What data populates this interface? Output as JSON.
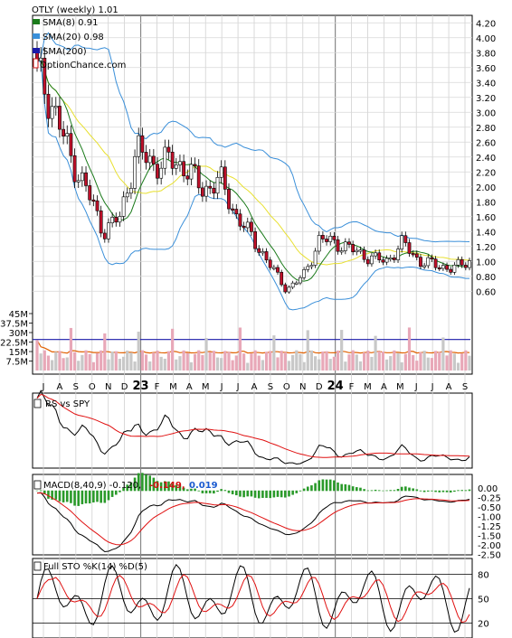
{
  "chart_data": [
    {
      "type": "line",
      "panel": "price",
      "title": "OTLY (weekly) 1.01",
      "y_ticks": [
        0.6,
        0.8,
        1.0,
        1.2,
        1.4,
        1.6,
        1.8,
        2.0,
        2.2,
        2.4,
        2.6,
        2.8,
        3.0,
        3.2,
        3.4,
        3.6,
        3.8,
        4.0,
        4.2
      ],
      "y_tick_labels": [
        "0.60",
        "0.80",
        "1.00",
        "1.20",
        "1.40",
        "1.60",
        "1.80",
        "2.00",
        "2.20",
        "2.40",
        "2.60",
        "2.80",
        "3.00",
        "3.20",
        "3.40",
        "3.60",
        "3.80",
        "4.00",
        "4.20"
      ],
      "legend": [
        {
          "label": "SMA(8) 0.91",
          "color": "#1a7a1a"
        },
        {
          "label": "SMA(20) 0.98",
          "color": "#3a8fd9"
        },
        {
          "label": "SMA(200)",
          "color": "#1a1aa8"
        },
        {
          "label": "OptionChance.com",
          "color": "#d01010"
        }
      ],
      "close_x": [
        "2022-07",
        "2022-08",
        "2022-09",
        "2022-10",
        "2022-11",
        "2022-12",
        "2023-01",
        "2023-02",
        "2023-03",
        "2023-04",
        "2023-05",
        "2023-06",
        "2023-07",
        "2023-08",
        "2023-09",
        "2023-10",
        "2023-11",
        "2023-12",
        "2024-01",
        "2024-02",
        "2024-03",
        "2024-04",
        "2024-05",
        "2024-06",
        "2024-07",
        "2024-08",
        "2024-09"
      ],
      "close": [
        3.55,
        3.05,
        2.4,
        1.95,
        1.4,
        1.6,
        2.5,
        2.3,
        2.35,
        2.25,
        1.95,
        2.1,
        1.6,
        1.3,
        0.95,
        0.62,
        0.8,
        1.3,
        1.25,
        1.15,
        1.05,
        1.0,
        1.25,
        1.0,
        0.95,
        0.9,
        1.01
      ],
      "volume_y_ticks": [
        "7.5M",
        "15M",
        "22.5M",
        "30M",
        "37.5M",
        "45M"
      ]
    },
    {
      "type": "line",
      "panel": "rs",
      "title": "RS vs SPY"
    },
    {
      "type": "line",
      "panel": "macd",
      "title": "MACD(8,40,9) -0.120,",
      "macd_value": "-0.149,",
      "signal_value": "0.019",
      "y_tick_labels": [
        "0.00",
        "-0.25",
        "-0.50",
        "-1.00",
        "-1.25",
        "-1.50",
        "-2.00",
        "-2.50"
      ]
    },
    {
      "type": "line",
      "panel": "sto",
      "title": "Full STO %K(14) %D(5)",
      "y_tick_labels": [
        "80",
        "50",
        "20"
      ]
    }
  ],
  "x_axis": {
    "labels": [
      "J",
      "A",
      "S",
      "O",
      "N",
      "D",
      "23",
      "F",
      "M",
      "A",
      "M",
      "J",
      "J",
      "A",
      "S",
      "O",
      "N",
      "D",
      "24",
      "F",
      "M",
      "A",
      "M",
      "J",
      "J",
      "A",
      "S"
    ]
  },
  "colors": {
    "up": "#ffffff",
    "down": "#c0102a",
    "sma8": "#1a7a1a",
    "sma20": "#3a8fd9",
    "sma200": "#1a1aa8",
    "bollinger": "#e8e030",
    "volume_up": "#c8c8c8",
    "volume_down": "#e8a8b8",
    "volume_avg": "#e06000",
    "rs": "#000000",
    "rs_ma": "#e01010",
    "macd": "#000000",
    "signal": "#e01010",
    "hist": "#2a9a2a",
    "macd_value_color": "#d01010",
    "signal_value_color": "#1a5ad0"
  }
}
